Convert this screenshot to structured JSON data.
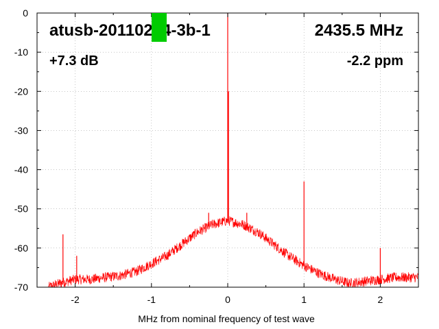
{
  "chart_data": {
    "type": "line",
    "title": "atusb-20110214-3b-1",
    "frequency_label": "2435.5 MHz",
    "gain_label": "+7.3 dB",
    "ppm_label": "-2.2 ppm",
    "xlabel": "MHz from nominal frequency of test wave",
    "ylabel": "",
    "xlim": [
      -2.5,
      2.5
    ],
    "ylim": [
      -70,
      0
    ],
    "x_ticks": [
      -2,
      -1,
      0,
      1,
      2
    ],
    "y_ticks": [
      0,
      -10,
      -20,
      -30,
      -40,
      -50,
      -60,
      -70
    ],
    "grid": true,
    "series_color": "#ff0000",
    "noise_floor": {
      "x": [
        -2.35,
        -2.2,
        -2.0,
        -1.8,
        -1.6,
        -1.4,
        -1.2,
        -1.0,
        -0.8,
        -0.6,
        -0.4,
        -0.2,
        0.0,
        0.2,
        0.4,
        0.6,
        0.8,
        1.0,
        1.2,
        1.4,
        1.6,
        1.8,
        2.0,
        2.2,
        2.5
      ],
      "y": [
        -70,
        -69,
        -68,
        -68,
        -67.5,
        -67,
        -66,
        -64,
        -62,
        -59,
        -56,
        -54,
        -53,
        -54,
        -56,
        -59,
        -62,
        -64.5,
        -66.5,
        -68,
        -69,
        -68.5,
        -68,
        -67.5,
        -67.5
      ]
    },
    "spurs": [
      {
        "x": 0.0,
        "y": 0
      },
      {
        "x": 0.01,
        "y": -20
      },
      {
        "x": 1.0,
        "y": -43
      },
      {
        "x": -2.16,
        "y": -56.5
      },
      {
        "x": -1.98,
        "y": -62
      },
      {
        "x": -0.25,
        "y": -51
      },
      {
        "x": 0.25,
        "y": -51
      },
      {
        "x": 2.0,
        "y": -60
      }
    ]
  },
  "overlay": {
    "marker_color": "#00cc00"
  }
}
